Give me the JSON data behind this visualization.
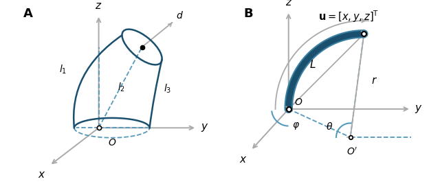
{
  "fig_width": 6.4,
  "fig_height": 2.74,
  "dpi": 100,
  "background": "#ffffff",
  "dark_blue": "#1a4f6e",
  "tube_outer": "#3a7fa0",
  "gray": "#aaaaaa",
  "dashed_blue": "#5599bb",
  "black": "#000000"
}
